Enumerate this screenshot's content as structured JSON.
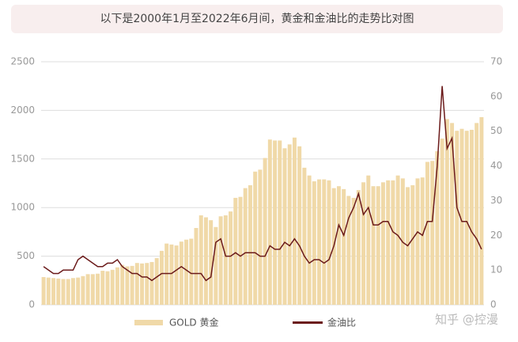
{
  "chart_data": {
    "type": "bar-line",
    "title": "以下是2000年1月至2022年6月间，黄金和金油比的走势比对图",
    "categories": [
      null,
      null,
      null,
      null,
      null,
      null,
      null,
      null,
      null,
      null,
      null,
      null,
      null,
      null,
      null,
      null,
      null,
      null,
      null,
      null,
      null,
      null,
      null,
      null,
      null,
      null,
      null,
      null,
      null,
      null,
      null,
      null,
      null,
      null,
      null,
      null,
      null,
      null,
      null,
      null,
      null,
      null,
      null,
      null,
      null,
      null,
      null,
      null,
      null,
      null,
      null,
      null,
      null,
      null,
      null,
      null,
      null,
      null,
      null,
      null,
      null,
      null,
      null,
      null,
      null,
      null,
      null,
      null,
      null,
      null,
      null,
      null,
      null,
      null,
      null,
      null,
      null,
      null,
      null,
      null,
      null,
      null,
      null,
      null,
      null,
      null,
      null,
      null,
      null,
      null
    ],
    "series": [
      {
        "name": "GOLD 黄金",
        "color": "#f0d9a8",
        "values": [
          285,
          280,
          275,
          270,
          265,
          265,
          275,
          280,
          295,
          315,
          315,
          320,
          350,
          345,
          360,
          385,
          410,
          395,
          400,
          430,
          425,
          430,
          440,
          480,
          555,
          630,
          620,
          610,
          650,
          670,
          680,
          790,
          920,
          900,
          870,
          800,
          910,
          920,
          960,
          1100,
          1110,
          1200,
          1230,
          1370,
          1390,
          1510,
          1700,
          1690,
          1690,
          1610,
          1650,
          1720,
          1630,
          1410,
          1330,
          1270,
          1290,
          1290,
          1280,
          1200,
          1220,
          1190,
          1120,
          1100,
          1180,
          1260,
          1330,
          1220,
          1220,
          1260,
          1280,
          1280,
          1330,
          1300,
          1210,
          1230,
          1300,
          1310,
          1470,
          1480,
          1580,
          1710,
          1910,
          1870,
          1790,
          1810,
          1790,
          1800,
          1870,
          1930
        ]
      },
      {
        "name": "金油比",
        "color": "#6b1a1a",
        "axis": "y2",
        "values": [
          11,
          10,
          9,
          9,
          10,
          10,
          10,
          13,
          14,
          13,
          12,
          11,
          11,
          12,
          12,
          13,
          11,
          10,
          9,
          9,
          8,
          8,
          7,
          8,
          9,
          9,
          9,
          10,
          11,
          10,
          9,
          9,
          9,
          7,
          8,
          18,
          19,
          14,
          14,
          15,
          14,
          15,
          15,
          15,
          14,
          14,
          17,
          16,
          16,
          18,
          17,
          19,
          17,
          14,
          12,
          13,
          13,
          12,
          13,
          17,
          23,
          20,
          25,
          28,
          32,
          26,
          28,
          23,
          23,
          24,
          24,
          21,
          20,
          18,
          17,
          19,
          21,
          20,
          24,
          24,
          40,
          63,
          45,
          48,
          28,
          24,
          24,
          21,
          19,
          16
        ]
      }
    ],
    "ylim": [
      0,
      2500
    ],
    "yticks": [
      0,
      500,
      1000,
      1500,
      2000,
      2500
    ],
    "y2lim": [
      0,
      70
    ],
    "y2ticks": [
      0,
      10,
      20,
      30,
      40,
      50,
      60,
      70
    ],
    "grid": true,
    "legend": "bottom",
    "watermark": "知乎 @控漫"
  }
}
